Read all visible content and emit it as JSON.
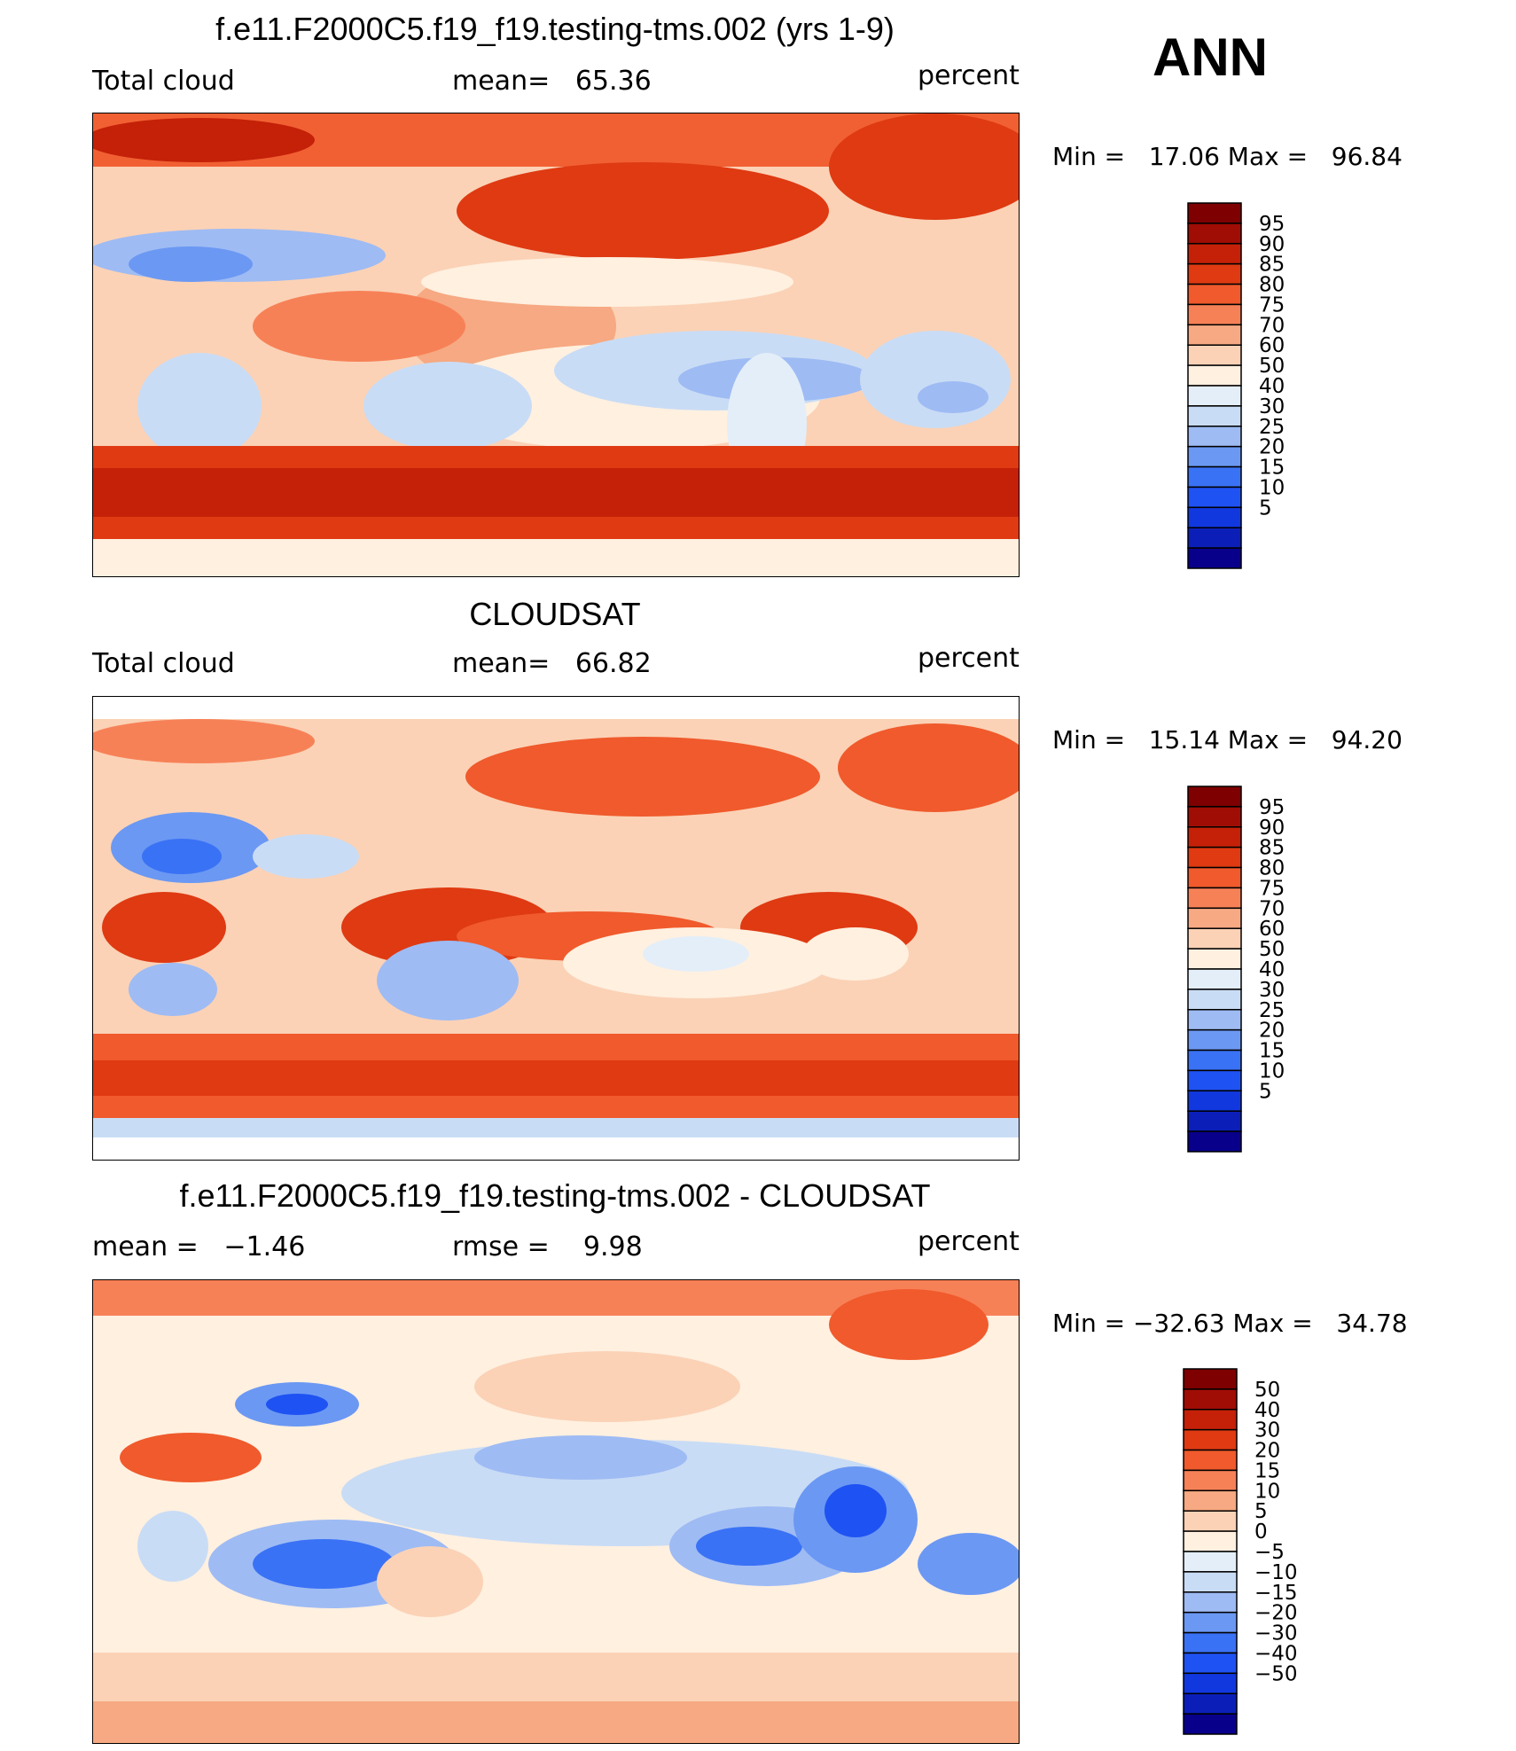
{
  "season": "ANN",
  "units": "percent",
  "colors": {
    "ramp": [
      "#08008a",
      "#0b1fb8",
      "#1138df",
      "#1f52f2",
      "#3a72f5",
      "#6b98f3",
      "#9ebbf4",
      "#c9dcf5",
      "#e4eef8",
      "#fff0e0",
      "#fbd2b6",
      "#f6a982",
      "#f78157",
      "#f05a2c",
      "#df3a12",
      "#c42108",
      "#a00d04",
      "#7e0000"
    ]
  },
  "panels": [
    {
      "title": "f.e11.F2000C5.f19_f19.testing-tms.002 (yrs 1-9)",
      "left_label": "Total cloud",
      "center_label": "mean=   65.36",
      "units": "percent",
      "minmax": "Min =   17.06 Max =   96.84"
    },
    {
      "title": "CLOUDSAT",
      "left_label": "Total cloud",
      "center_label": "mean=   66.82",
      "units": "percent",
      "minmax": "Min =   15.14 Max =   94.20"
    },
    {
      "title": "f.e11.F2000C5.f19_f19.testing-tms.002 - CLOUDSAT",
      "left_label": "mean =   −1.46",
      "center_label": "rmse =    9.98",
      "units": "percent",
      "minmax": "Min = −32.63 Max =   34.78"
    }
  ],
  "chart_data": [
    {
      "type": "heatmap",
      "title": "f.e11.F2000C5.f19_f19.testing-tms.002 (yrs 1-9)",
      "variable": "Total cloud",
      "units": "percent",
      "mean": 65.36,
      "min": 17.06,
      "max": 96.84,
      "colorbar_levels": [
        5,
        10,
        15,
        20,
        25,
        30,
        40,
        50,
        60,
        70,
        75,
        80,
        85,
        90,
        95
      ],
      "colorbar_labels": [
        "95",
        "90",
        "85",
        "80",
        "75",
        "70",
        "60",
        "50",
        "40",
        "30",
        "25",
        "20",
        "15",
        "10",
        "5"
      ]
    },
    {
      "type": "heatmap",
      "title": "CLOUDSAT",
      "variable": "Total cloud",
      "units": "percent",
      "mean": 66.82,
      "min": 15.14,
      "max": 94.2,
      "colorbar_levels": [
        5,
        10,
        15,
        20,
        25,
        30,
        40,
        50,
        60,
        70,
        75,
        80,
        85,
        90,
        95
      ],
      "colorbar_labels": [
        "95",
        "90",
        "85",
        "80",
        "75",
        "70",
        "60",
        "50",
        "40",
        "30",
        "25",
        "20",
        "15",
        "10",
        "5"
      ]
    },
    {
      "type": "heatmap",
      "title": "f.e11.F2000C5.f19_f19.testing-tms.002 - CLOUDSAT",
      "units": "percent",
      "mean": -1.46,
      "rmse": 9.98,
      "min": -32.63,
      "max": 34.78,
      "colorbar_levels": [
        -50,
        -40,
        -30,
        -20,
        -15,
        -10,
        -5,
        0,
        5,
        10,
        15,
        20,
        30,
        40,
        50
      ],
      "colorbar_labels": [
        "50",
        "40",
        "30",
        "20",
        "15",
        "10",
        "5",
        "0",
        "−5",
        "−10",
        "−15",
        "−20",
        "−30",
        "−40",
        "−50"
      ]
    }
  ]
}
